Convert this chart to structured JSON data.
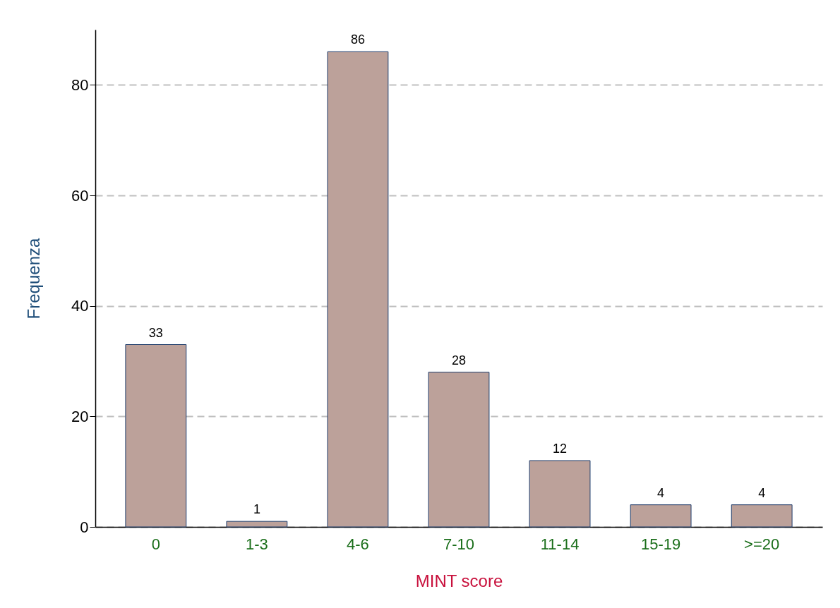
{
  "chart_data": {
    "type": "bar",
    "xlabel": "MINT score",
    "ylabel": "Frequenza",
    "categories": [
      "0",
      "1-3",
      "4-6",
      "7-10",
      "11-14",
      "15-19",
      ">=20"
    ],
    "series": [
      {
        "color": "#bca19a",
        "values": [
          33,
          1,
          86,
          28,
          12,
          4,
          4
        ]
      }
    ],
    "ylim": [
      0,
      90
    ],
    "yticks": [
      0,
      20,
      40,
      60,
      80
    ],
    "grid": "y",
    "data_labels": true
  }
}
